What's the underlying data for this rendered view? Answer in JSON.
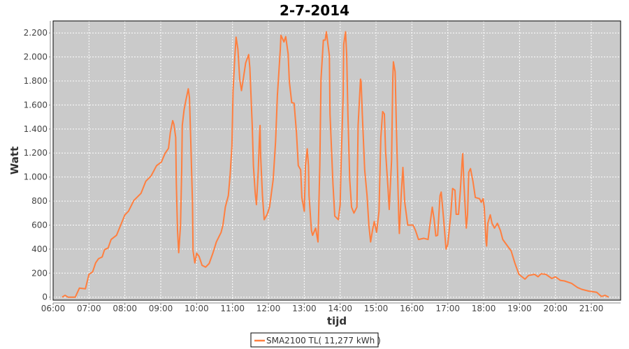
{
  "chart_data": {
    "type": "line",
    "title": "2-7-2014",
    "xlabel": "tijd",
    "ylabel": "Watt",
    "xlim": [
      "06:00",
      "21:49"
    ],
    "ylim": [
      -25,
      2300
    ],
    "grid": true,
    "legend_position": "bottom",
    "x_ticks": [
      "06:00",
      "07:00",
      "08:00",
      "09:00",
      "10:00",
      "11:00",
      "12:00",
      "13:00",
      "14:00",
      "15:00",
      "16:00",
      "17:00",
      "18:00",
      "19:00",
      "20:00",
      "21:00"
    ],
    "y_ticks": [
      0,
      200,
      400,
      600,
      800,
      1000,
      1200,
      1400,
      1600,
      1800,
      2000,
      2200
    ],
    "y_tick_labels": [
      "0",
      "200",
      "400",
      "600",
      "800",
      "1.000",
      "1.200",
      "1.400",
      "1.600",
      "1.800",
      "2.000",
      "2.200"
    ],
    "series": [
      {
        "name": "SMA2100 TL( 11,277 kWh )",
        "color": "#ff7f3f",
        "x": [
          "06:15",
          "06:20",
          "06:25",
          "06:37",
          "06:44",
          "06:54",
          "07:00",
          "07:06",
          "07:11",
          "07:16",
          "07:22",
          "07:26",
          "07:32",
          "07:37",
          "07:46",
          "07:53",
          "08:00",
          "08:06",
          "08:15",
          "08:27",
          "08:35",
          "08:44",
          "08:53",
          "09:01",
          "09:07",
          "09:13",
          "09:16",
          "09:20",
          "09:22",
          "09:25",
          "09:26",
          "09:28",
          "09:30",
          "09:33",
          "09:35",
          "09:36",
          "09:39",
          "09:42",
          "09:46",
          "09:48",
          "09:50",
          "09:53",
          "09:54",
          "09:57",
          "10:00",
          "10:04",
          "10:09",
          "10:15",
          "10:21",
          "10:27",
          "10:33",
          "10:41",
          "10:44",
          "10:48",
          "10:53",
          "10:56",
          "10:59",
          "11:01",
          "11:04",
          "11:06",
          "11:09",
          "11:12",
          "11:15",
          "11:18",
          "11:22",
          "11:27",
          "11:29",
          "11:33",
          "11:35",
          "11:38",
          "11:40",
          "11:43",
          "11:45",
          "11:46",
          "11:47",
          "11:50",
          "11:53",
          "11:58",
          "12:02",
          "12:08",
          "12:12",
          "12:15",
          "12:20",
          "12:21",
          "12:26",
          "12:29",
          "12:33",
          "12:35",
          "12:39",
          "12:43",
          "12:47",
          "12:50",
          "12:54",
          "12:56",
          "13:00",
          "13:02",
          "13:05",
          "13:07",
          "13:08",
          "13:12",
          "13:14",
          "13:19",
          "13:23",
          "13:26",
          "13:28",
          "13:32",
          "13:35",
          "13:37",
          "13:42",
          "13:43",
          "13:48",
          "13:51",
          "13:57",
          "14:00",
          "14:02",
          "14:05",
          "14:06",
          "14:09",
          "14:11",
          "14:13",
          "14:16",
          "14:19",
          "14:23",
          "14:28",
          "14:30",
          "14:34",
          "14:35",
          "14:37",
          "14:41",
          "14:45",
          "14:48",
          "14:51",
          "14:54",
          "14:57",
          "15:01",
          "15:05",
          "15:08",
          "15:11",
          "15:14",
          "15:16",
          "15:20",
          "15:22",
          "15:26",
          "15:28",
          "15:29",
          "15:32",
          "15:34",
          "15:38",
          "15:39",
          "15:42",
          "15:45",
          "15:48",
          "15:53",
          "16:02",
          "16:06",
          "16:11",
          "16:20",
          "16:27",
          "16:30",
          "16:34",
          "16:37",
          "16:40",
          "16:43",
          "16:47",
          "16:49",
          "16:53",
          "16:57",
          "17:00",
          "17:05",
          "17:08",
          "17:12",
          "17:14",
          "17:18",
          "17:21",
          "17:24",
          "17:25",
          "17:27",
          "17:31",
          "17:33",
          "17:35",
          "17:38",
          "17:42",
          "17:46",
          "17:53",
          "17:56",
          "17:59",
          "18:01",
          "18:04",
          "18:05",
          "18:07",
          "18:11",
          "18:14",
          "18:18",
          "18:23",
          "18:28",
          "18:32",
          "18:40",
          "18:46",
          "18:52",
          "18:59",
          "19:09",
          "19:15",
          "19:25",
          "19:31",
          "19:36",
          "19:44",
          "19:54",
          "20:00",
          "20:08",
          "20:15",
          "20:27",
          "20:37",
          "20:44",
          "20:56",
          "21:09",
          "21:17",
          "21:23",
          "21:29"
        ],
        "y": [
          0,
          15,
          0,
          0,
          75,
          70,
          190,
          210,
          285,
          320,
          335,
          395,
          410,
          480,
          515,
          600,
          685,
          715,
          805,
          865,
          965,
          1010,
          1095,
          1125,
          1195,
          1240,
          1370,
          1470,
          1440,
          1330,
          945,
          555,
          370,
          600,
          1060,
          1430,
          1560,
          1640,
          1735,
          1660,
          1330,
          790,
          385,
          285,
          365,
          340,
          265,
          250,
          280,
          365,
          460,
          540,
          600,
          750,
          845,
          1020,
          1255,
          1720,
          2010,
          2165,
          2065,
          1815,
          1720,
          1815,
          1950,
          2020,
          1910,
          1430,
          1095,
          865,
          770,
          1050,
          1330,
          1430,
          1180,
          850,
          645,
          690,
          750,
          980,
          1295,
          1680,
          2065,
          2180,
          2125,
          2170,
          2025,
          1795,
          1620,
          1615,
          1370,
          1095,
          1060,
          830,
          715,
          1095,
          1235,
          1095,
          845,
          555,
          515,
          575,
          460,
          1095,
          1815,
          2140,
          2140,
          2210,
          2010,
          1525,
          945,
          675,
          645,
          770,
          1180,
          1680,
          2105,
          2210,
          2010,
          1525,
          980,
          750,
          700,
          750,
          1430,
          1815,
          1795,
          1525,
          1060,
          845,
          600,
          460,
          555,
          630,
          540,
          715,
          1330,
          1545,
          1525,
          1215,
          905,
          730,
          1140,
          1815,
          1960,
          1875,
          1430,
          655,
          530,
          845,
          1080,
          790,
          600,
          600,
          555,
          480,
          490,
          480,
          600,
          750,
          655,
          510,
          515,
          845,
          875,
          655,
          400,
          440,
          690,
          905,
          890,
          690,
          690,
          890,
          1140,
          1195,
          945,
          575,
          690,
          1040,
          1070,
          965,
          830,
          820,
          790,
          820,
          750,
          460,
          425,
          615,
          685,
          615,
          575,
          615,
          555,
          480,
          425,
          385,
          285,
          190,
          150,
          180,
          190,
          170,
          195,
          190,
          155,
          170,
          140,
          135,
          115,
          80,
          65,
          50,
          40,
          5,
          15,
          0
        ]
      }
    ]
  }
}
